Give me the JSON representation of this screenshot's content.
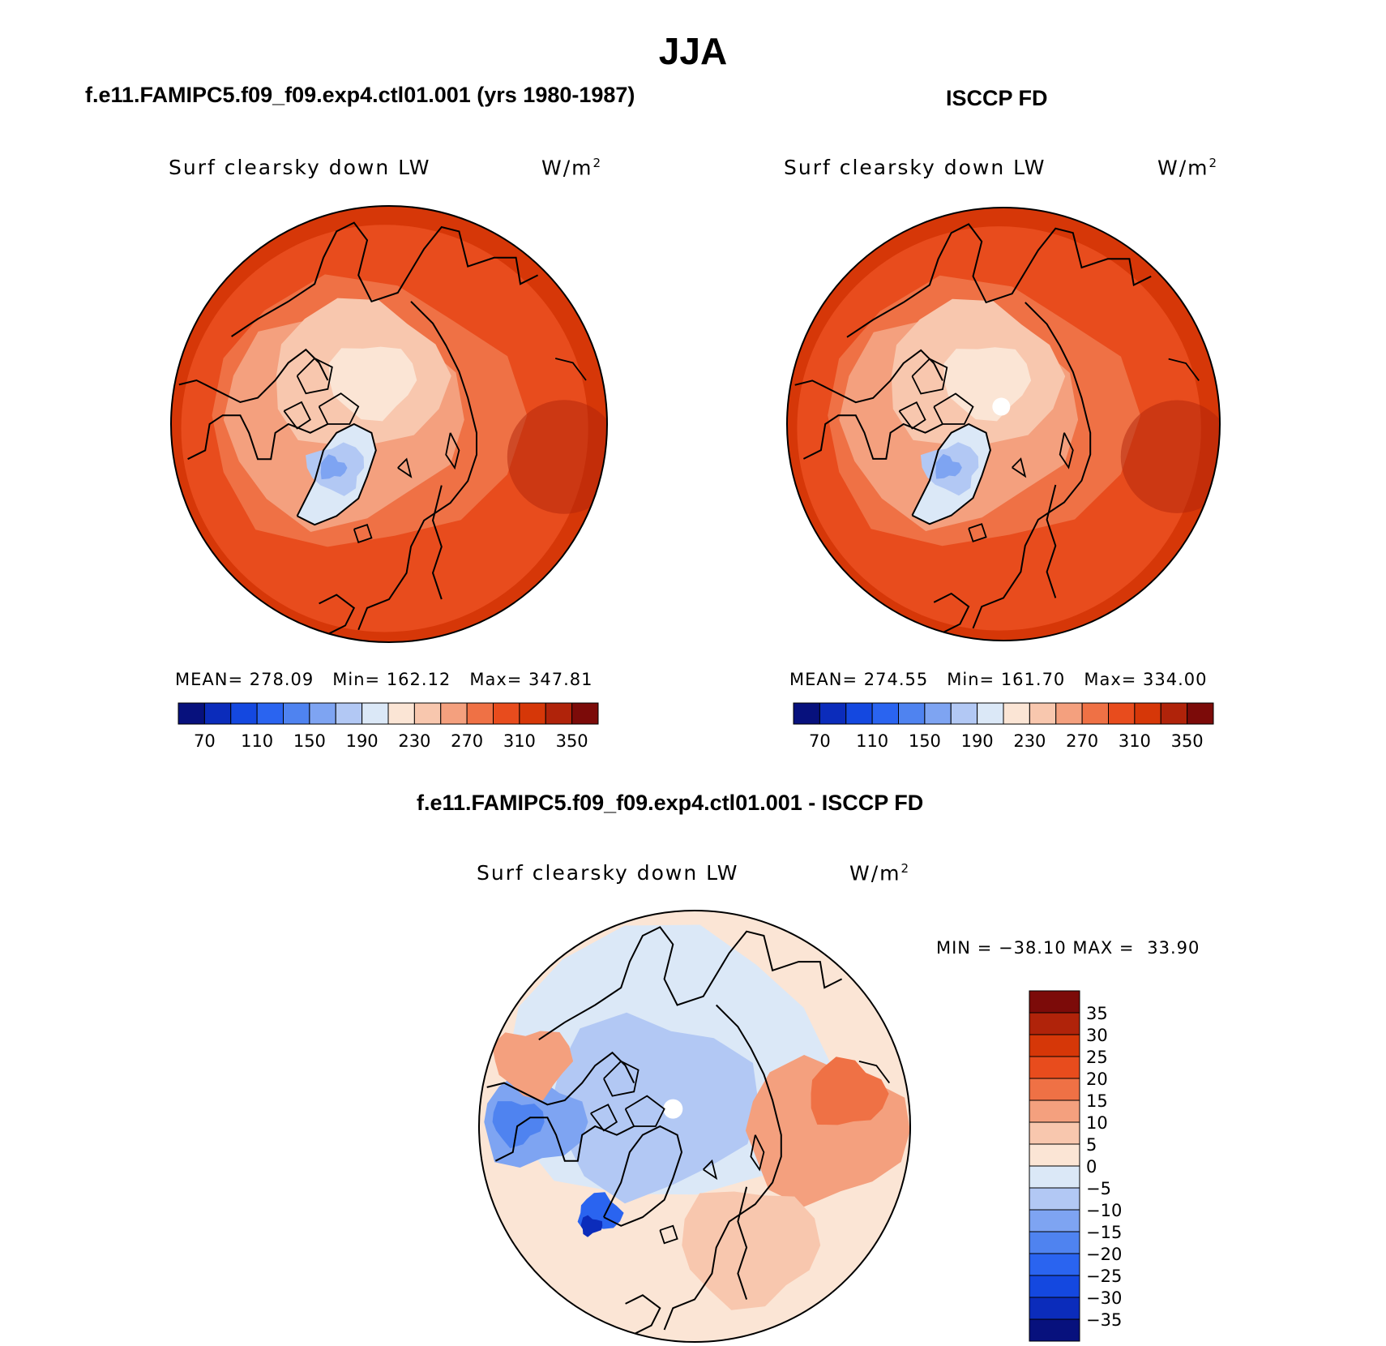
{
  "title": "JJA",
  "palettes": {
    "abs": [
      "#07117d",
      "#0b2cbb",
      "#1448e0",
      "#2a64f0",
      "#4f83f0",
      "#7ea4f2",
      "#b2c8f4",
      "#dbe8f7",
      "#fbe5d5",
      "#f8c7ae",
      "#f4a07e",
      "#ef7145",
      "#e84c1d",
      "#d63708",
      "#b0230a",
      "#7c0b09"
    ],
    "diff": [
      "#07117d",
      "#0b2cbb",
      "#1448e0",
      "#2a64f0",
      "#4f83f0",
      "#7ea4f2",
      "#b2c8f4",
      "#dbe8f7",
      "#fbe5d5",
      "#f8c7ae",
      "#f4a07e",
      "#ef7145",
      "#e84c1d",
      "#d63708",
      "#b0230a",
      "#7c0b09"
    ]
  },
  "panels": [
    {
      "title": "f.e11.FAMIPC5.f09_f09.exp4.ctl01.001 (yrs 1980-1987)",
      "variable": "Surf clearsky down LW",
      "units": "W/m",
      "units_exp": "2",
      "stats": {
        "mean_label": "MEAN=",
        "mean": "278.09",
        "min_label": "Min=",
        "min": "162.12",
        "max_label": "Max=",
        "max": "347.81"
      },
      "colorbar_ticks": [
        "70",
        "110",
        "150",
        "190",
        "230",
        "270",
        "310",
        "350"
      ]
    },
    {
      "title": "ISCCP FD",
      "variable": "Surf clearsky down LW",
      "units": "W/m",
      "units_exp": "2",
      "stats": {
        "mean_label": "MEAN=",
        "mean": "274.55",
        "min_label": "Min=",
        "min": "161.70",
        "max_label": "Max=",
        "max": "334.00"
      },
      "colorbar_ticks": [
        "70",
        "110",
        "150",
        "190",
        "230",
        "270",
        "310",
        "350"
      ]
    },
    {
      "title": "f.e11.FAMIPC5.f09_f09.exp4.ctl01.001 - ISCCP FD",
      "variable": "Surf clearsky down LW",
      "units": "W/m",
      "units_exp": "2",
      "stats": {
        "min_label": "MIN =",
        "min": "−38.10",
        "max_label": "MAX =",
        "max": "33.90"
      },
      "colorbar_ticks": [
        "35",
        "30",
        "25",
        "20",
        "15",
        "10",
        "5",
        "0",
        "−5",
        "−10",
        "−15",
        "−20",
        "−25",
        "−30",
        "−35"
      ]
    }
  ],
  "chart_data": [
    {
      "type": "heatmap",
      "projection": "north polar stereographic",
      "season": "JJA",
      "title": "f.e11.FAMIPC5.f09_f09.exp4.ctl01.001 (yrs 1980-1987)",
      "variable": "Surf clearsky down LW",
      "units": "W/m2",
      "mean": 278.09,
      "min": 162.12,
      "max": 347.81,
      "contour_levels": [
        70,
        90,
        110,
        130,
        150,
        170,
        190,
        210,
        230,
        250,
        270,
        290,
        310,
        330,
        350
      ],
      "colorbar_labels": [
        70,
        110,
        150,
        190,
        230,
        270,
        310,
        350
      ]
    },
    {
      "type": "heatmap",
      "projection": "north polar stereographic",
      "season": "JJA",
      "title": "ISCCP FD",
      "variable": "Surf clearsky down LW",
      "units": "W/m2",
      "mean": 274.55,
      "min": 161.7,
      "max": 334.0,
      "contour_levels": [
        70,
        90,
        110,
        130,
        150,
        170,
        190,
        210,
        230,
        250,
        270,
        290,
        310,
        330,
        350
      ],
      "colorbar_labels": [
        70,
        110,
        150,
        190,
        230,
        270,
        310,
        350
      ]
    },
    {
      "type": "heatmap",
      "projection": "north polar stereographic",
      "season": "JJA",
      "title": "f.e11.FAMIPC5.f09_f09.exp4.ctl01.001 - ISCCP FD",
      "variable": "Surf clearsky down LW",
      "units": "W/m2",
      "min": -38.1,
      "max": 33.9,
      "contour_levels": [
        -35,
        -30,
        -25,
        -20,
        -15,
        -10,
        -5,
        0,
        5,
        10,
        15,
        20,
        25,
        30,
        35
      ],
      "colorbar_labels": [
        35,
        30,
        25,
        20,
        15,
        10,
        5,
        0,
        -5,
        -10,
        -15,
        -20,
        -25,
        -30,
        -35
      ]
    }
  ]
}
